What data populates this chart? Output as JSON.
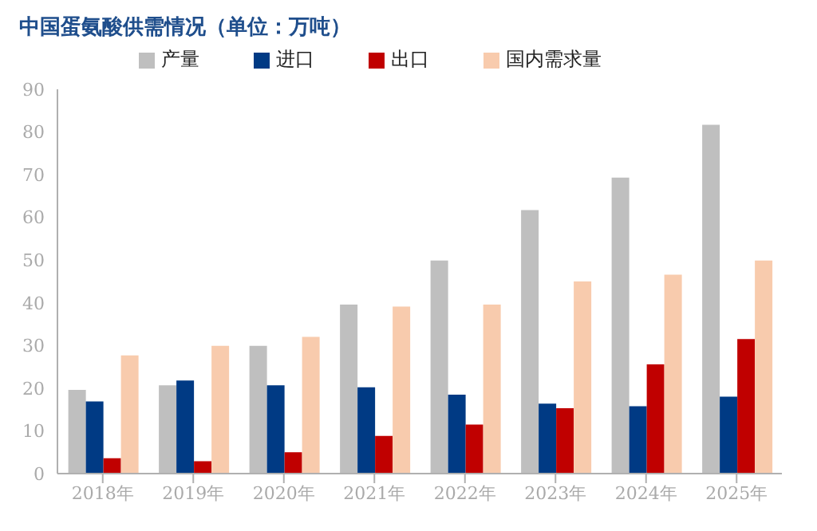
{
  "chart_data": {
    "type": "bar",
    "title": "中国蛋氨酸供需情况（单位：万吨）",
    "categories": [
      "2018年",
      "2019年",
      "2020年",
      "2021年",
      "2022年",
      "2023年",
      "2024年",
      "2025年"
    ],
    "series": [
      {
        "name": "产量",
        "color": "#bfbfbf",
        "values": [
          19.6,
          20.7,
          29.9,
          39.6,
          49.9,
          61.7,
          69.3,
          81.7
        ]
      },
      {
        "name": "进口",
        "color": "#003a84",
        "values": [
          16.9,
          21.8,
          20.7,
          20.2,
          18.5,
          16.4,
          15.8,
          18.0
        ]
      },
      {
        "name": "出口",
        "color": "#c00000",
        "values": [
          3.6,
          2.9,
          5.0,
          8.8,
          11.5,
          15.3,
          25.6,
          31.5
        ]
      },
      {
        "name": "国内需求量",
        "color": "#f8cbad",
        "values": [
          27.7,
          29.9,
          32.0,
          39.1,
          39.6,
          45.0,
          46.6,
          49.9
        ]
      }
    ],
    "ylim": [
      0,
      90
    ],
    "yticks": [
      0,
      10,
      20,
      30,
      40,
      50,
      60,
      70,
      80,
      90
    ],
    "grid": false,
    "legend": "top"
  }
}
